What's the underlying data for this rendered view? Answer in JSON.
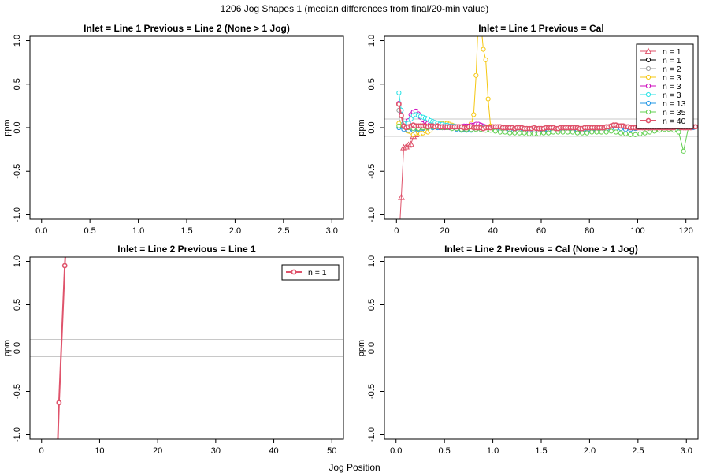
{
  "figure": {
    "title": "1206 Jog Shapes 1 (median differences from final/20-min value)",
    "xlabel": "Jog Position"
  },
  "chart_data": [
    {
      "type": "line",
      "title": "Inlet = Line 1  Previous = Line 2 (None > 1 Jog)",
      "ylabel": "ppm",
      "xlim": [
        -0.12,
        3.12
      ],
      "ylim": [
        -1.05,
        1.05
      ],
      "xticks": [
        "0.0",
        "0.5",
        "1.0",
        "1.5",
        "2.0",
        "2.5",
        "3.0"
      ],
      "yticks": [
        "-1.0",
        "-0.5",
        "0.0",
        "0.5",
        "1.0"
      ],
      "reference_lines": [],
      "legend": null,
      "series": []
    },
    {
      "type": "line",
      "title": "Inlet = Line 1  Previous = Cal",
      "ylabel": "ppm",
      "xlim": [
        -5,
        125
      ],
      "ylim": [
        -1.05,
        1.05
      ],
      "xticks": [
        "0",
        "20",
        "40",
        "60",
        "80",
        "100",
        "120"
      ],
      "yticks": [
        "-1.0",
        "-0.5",
        "0.0",
        "0.5",
        "1.0"
      ],
      "reference_lines": [
        0.1,
        -0.1
      ],
      "legend": {
        "position": "top-right"
      },
      "series": [
        {
          "name": "n = 1",
          "color": "#DF536B",
          "marker": "triangle",
          "lwd": 1,
          "x": [
            1,
            2,
            3,
            4,
            5,
            6,
            7,
            8
          ],
          "y": [
            -1.3,
            -0.8,
            -0.23,
            -0.22,
            -0.2,
            -0.19,
            -0.1,
            -0.08
          ]
        },
        {
          "name": "n = 1",
          "color": "#000000",
          "marker": "circle",
          "lwd": 1,
          "x": [
            1,
            2,
            3,
            4
          ],
          "y": [
            0.27,
            0.13,
            0.02,
            0.0
          ]
        },
        {
          "name": "n = 2",
          "color": "#9E9E9E",
          "marker": "circle",
          "lwd": 1,
          "x": [
            1,
            2,
            3,
            4,
            5
          ],
          "y": [
            0.2,
            0.1,
            0.03,
            0.0,
            0.0
          ]
        },
        {
          "name": "n = 3",
          "color": "#F5C710",
          "marker": "circle",
          "lwd": 1,
          "x": [
            1,
            2,
            3,
            4,
            5,
            6,
            7,
            8,
            9,
            10,
            11,
            12,
            13,
            14,
            15,
            16,
            17,
            18,
            19,
            20,
            21,
            22,
            23,
            24,
            25,
            26,
            27,
            28,
            29,
            30,
            31,
            32,
            33,
            34,
            35,
            36,
            37,
            38,
            39,
            40
          ],
          "y": [
            0.05,
            0.02,
            0.0,
            -0.02,
            -0.04,
            -0.05,
            -0.08,
            -0.06,
            -0.05,
            -0.07,
            -0.06,
            -0.04,
            -0.05,
            -0.03,
            0.0,
            0.02,
            0.03,
            0.04,
            0.05,
            0.05,
            0.05,
            0.04,
            0.03,
            0.02,
            0.01,
            0.0,
            -0.01,
            -0.02,
            -0.01,
            0.0,
            0.05,
            0.15,
            0.6,
            1.3,
            1.2,
            0.9,
            0.78,
            0.33,
            0.02,
            0.0
          ]
        },
        {
          "name": "n = 3",
          "color": "#CD0BBC",
          "marker": "circle",
          "lwd": 1,
          "x": [
            1,
            2,
            3,
            4,
            5,
            6,
            7,
            8,
            9,
            10,
            11,
            12,
            13,
            14,
            15,
            16,
            17,
            18,
            19,
            20,
            21,
            22,
            23,
            24,
            25,
            26,
            27,
            28,
            29,
            30,
            31,
            32,
            33,
            34,
            35,
            36,
            37,
            38
          ],
          "y": [
            0.28,
            0.15,
            0.05,
            0.0,
            0.08,
            0.15,
            0.18,
            0.19,
            0.16,
            0.12,
            0.09,
            0.07,
            0.05,
            0.04,
            0.03,
            0.02,
            0.01,
            0.0,
            0.0,
            0.0,
            0.01,
            0.0,
            0.0,
            0.0,
            0.0,
            0.0,
            0.01,
            0.02,
            0.02,
            0.02,
            0.03,
            0.03,
            0.04,
            0.04,
            0.03,
            0.02,
            0.01,
            0.0
          ]
        },
        {
          "name": "n = 3",
          "color": "#28E2E5",
          "marker": "circle",
          "lwd": 1,
          "x": [
            1,
            2,
            3,
            4,
            5,
            6,
            7,
            8,
            9,
            10,
            11,
            12,
            13,
            14,
            15,
            16,
            17,
            18,
            19,
            20,
            21,
            22,
            23,
            24,
            25,
            26,
            27,
            28,
            29,
            30,
            31,
            32,
            33,
            34,
            35,
            36,
            37,
            38
          ],
          "y": [
            0.4,
            0.2,
            0.05,
            0.0,
            0.05,
            0.1,
            0.14,
            0.15,
            0.14,
            0.13,
            0.12,
            0.11,
            0.1,
            0.08,
            0.07,
            0.06,
            0.05,
            0.04,
            0.04,
            0.03,
            0.03,
            0.02,
            0.02,
            0.02,
            0.01,
            0.01,
            0.0,
            0.0,
            0.0,
            0.0,
            0.0,
            0.0,
            0.0,
            0.0,
            0.0,
            0.0,
            0.0,
            0.0
          ]
        },
        {
          "name": "n = 13",
          "color": "#2297E6",
          "marker": "circle",
          "lwd": 1,
          "x": [
            1,
            3,
            5,
            7,
            9,
            11,
            13,
            15,
            17,
            19,
            21,
            23,
            25,
            27,
            29,
            31,
            33,
            35,
            37,
            39,
            41,
            43,
            45,
            47,
            49,
            51,
            53,
            55,
            57,
            59,
            61,
            63,
            65,
            67,
            69,
            71,
            73,
            75,
            77,
            79,
            81,
            83,
            85,
            87,
            89,
            91,
            93,
            95,
            97,
            99,
            101,
            103,
            105,
            107,
            109,
            111,
            113,
            115,
            117,
            119,
            121,
            123
          ],
          "y": [
            0.0,
            -0.02,
            -0.03,
            -0.03,
            -0.02,
            -0.01,
            0.0,
            0.0,
            0.0,
            0.0,
            0.0,
            -0.01,
            -0.02,
            -0.03,
            -0.03,
            -0.03,
            -0.02,
            -0.02,
            -0.02,
            -0.01,
            -0.01,
            -0.02,
            -0.03,
            -0.03,
            -0.02,
            -0.02,
            -0.02,
            -0.03,
            -0.04,
            -0.04,
            -0.04,
            -0.04,
            -0.03,
            -0.03,
            -0.02,
            -0.02,
            -0.03,
            -0.04,
            -0.05,
            -0.05,
            -0.04,
            -0.03,
            -0.02,
            -0.02,
            -0.01,
            -0.01,
            -0.01,
            -0.02,
            -0.02,
            -0.01,
            0.0,
            0.0,
            0.0,
            0.0,
            0.0,
            0.01,
            0.01,
            0.0,
            0.0,
            0.0,
            0.0,
            0.0
          ]
        },
        {
          "name": "n = 35",
          "color": "#61D04F",
          "marker": "circle",
          "lwd": 1,
          "x": [
            1,
            3,
            5,
            7,
            9,
            11,
            13,
            15,
            17,
            19,
            21,
            23,
            25,
            27,
            29,
            31,
            33,
            35,
            37,
            39,
            41,
            43,
            45,
            47,
            49,
            51,
            53,
            55,
            57,
            59,
            61,
            63,
            65,
            67,
            69,
            71,
            73,
            75,
            77,
            79,
            81,
            83,
            85,
            87,
            89,
            91,
            93,
            95,
            97,
            99,
            101,
            103,
            105,
            107,
            109,
            111,
            113,
            115,
            117,
            119,
            121,
            123
          ],
          "y": [
            0.02,
            0.01,
            0.0,
            -0.01,
            -0.01,
            0.0,
            0.0,
            0.01,
            0.01,
            0.0,
            0.0,
            -0.01,
            -0.01,
            -0.02,
            -0.02,
            -0.02,
            -0.02,
            -0.02,
            -0.03,
            -0.03,
            -0.04,
            -0.05,
            -0.05,
            -0.06,
            -0.06,
            -0.06,
            -0.06,
            -0.07,
            -0.07,
            -0.07,
            -0.06,
            -0.06,
            -0.05,
            -0.05,
            -0.05,
            -0.05,
            -0.05,
            -0.06,
            -0.06,
            -0.06,
            -0.05,
            -0.05,
            -0.05,
            -0.05,
            -0.04,
            -0.05,
            -0.06,
            -0.07,
            -0.08,
            -0.08,
            -0.07,
            -0.06,
            -0.05,
            -0.04,
            -0.03,
            -0.02,
            -0.02,
            -0.03,
            -0.05,
            -0.27,
            0.0,
            0.01
          ]
        },
        {
          "name": "n = 40",
          "color": "#DF536B",
          "marker": "circle",
          "lwd": 2,
          "x": [
            1,
            2,
            3,
            4,
            5,
            6,
            7,
            8,
            9,
            10,
            11,
            12,
            13,
            14,
            15,
            16,
            17,
            18,
            19,
            20,
            21,
            22,
            23,
            24,
            25,
            26,
            27,
            28,
            29,
            30,
            31,
            32,
            33,
            34,
            35,
            36,
            37,
            38,
            39,
            40,
            41,
            42,
            43,
            44,
            45,
            46,
            47,
            48,
            49,
            50,
            51,
            52,
            53,
            54,
            55,
            56,
            57,
            58,
            59,
            60,
            61,
            62,
            63,
            64,
            65,
            66,
            67,
            68,
            69,
            70,
            71,
            72,
            73,
            74,
            75,
            76,
            77,
            78,
            79,
            80,
            81,
            82,
            83,
            84,
            85,
            86,
            87,
            88,
            89,
            90,
            91,
            92,
            93,
            94,
            95,
            96,
            97,
            98,
            99,
            100,
            101,
            102,
            103,
            104,
            105,
            106,
            107,
            108,
            109,
            110,
            111,
            112,
            113,
            114,
            115,
            116,
            117,
            118,
            119,
            120,
            121,
            122,
            123,
            124
          ],
          "y": [
            0.27,
            0.14,
            0.02,
            0.0,
            0.01,
            0.02,
            0.03,
            0.02,
            0.02,
            0.02,
            0.02,
            0.02,
            0.01,
            0.02,
            0.02,
            0.01,
            0.02,
            0.01,
            0.01,
            0.01,
            0.01,
            0.01,
            0.01,
            0.01,
            0.01,
            0.01,
            0.01,
            0.0,
            0.0,
            0.01,
            0.01,
            0.0,
            0.0,
            0.0,
            0.0,
            -0.01,
            0.0,
            0.0,
            0.0,
            0.01,
            0.01,
            0.01,
            0.01,
            0.0,
            0.0,
            0.0,
            0.0,
            0.0,
            -0.01,
            0.0,
            0.0,
            0.0,
            -0.01,
            -0.01,
            -0.01,
            -0.01,
            0.0,
            -0.01,
            -0.01,
            -0.01,
            -0.01,
            0.0,
            0.0,
            0.0,
            0.0,
            -0.01,
            -0.01,
            0.0,
            0.0,
            0.0,
            0.0,
            0.0,
            0.0,
            0.0,
            0.0,
            -0.01,
            -0.01,
            0.0,
            0.0,
            0.0,
            0.0,
            0.0,
            0.0,
            0.0,
            0.0,
            0.0,
            0.01,
            0.01,
            0.02,
            0.03,
            0.03,
            0.02,
            0.02,
            0.02,
            0.01,
            0.01,
            0.0,
            0.0,
            0.0,
            0.0,
            0.0,
            0.0,
            0.0,
            0.0,
            0.0,
            0.0,
            0.0,
            0.0,
            0.0,
            0.0,
            0.0,
            0.0,
            0.0,
            0.0,
            0.0,
            0.01,
            0.01,
            0.0,
            0.0,
            0.0,
            0.0,
            0.0,
            0.01,
            0.01
          ]
        }
      ]
    },
    {
      "type": "line",
      "title": "Inlet = Line 2  Previous = Line 1",
      "ylabel": "ppm",
      "xlim": [
        -2,
        52
      ],
      "ylim": [
        -1.05,
        1.05
      ],
      "xticks": [
        "0",
        "10",
        "20",
        "30",
        "40",
        "50"
      ],
      "yticks": [
        "-1.0",
        "-0.5",
        "0.0",
        "0.5",
        "1.0"
      ],
      "reference_lines": [
        0.1,
        -0.1
      ],
      "legend": {
        "position": "top-right"
      },
      "series": [
        {
          "name": "n = 1",
          "color": "#DF536B",
          "marker": "circle",
          "lwd": 2,
          "x": [
            2.7,
            3,
            4,
            4.3
          ],
          "y": [
            -1.3,
            -0.63,
            0.95,
            1.3
          ]
        }
      ]
    },
    {
      "type": "line",
      "title": "Inlet = Line 2  Previous = Cal (None > 1 Jog)",
      "ylabel": "ppm",
      "xlim": [
        -0.12,
        3.12
      ],
      "ylim": [
        -1.05,
        1.05
      ],
      "xticks": [
        "0.0",
        "0.5",
        "1.0",
        "1.5",
        "2.0",
        "2.5",
        "3.0"
      ],
      "yticks": [
        "-1.0",
        "-0.5",
        "0.0",
        "0.5",
        "1.0"
      ],
      "reference_lines": [],
      "legend": null,
      "series": []
    }
  ]
}
